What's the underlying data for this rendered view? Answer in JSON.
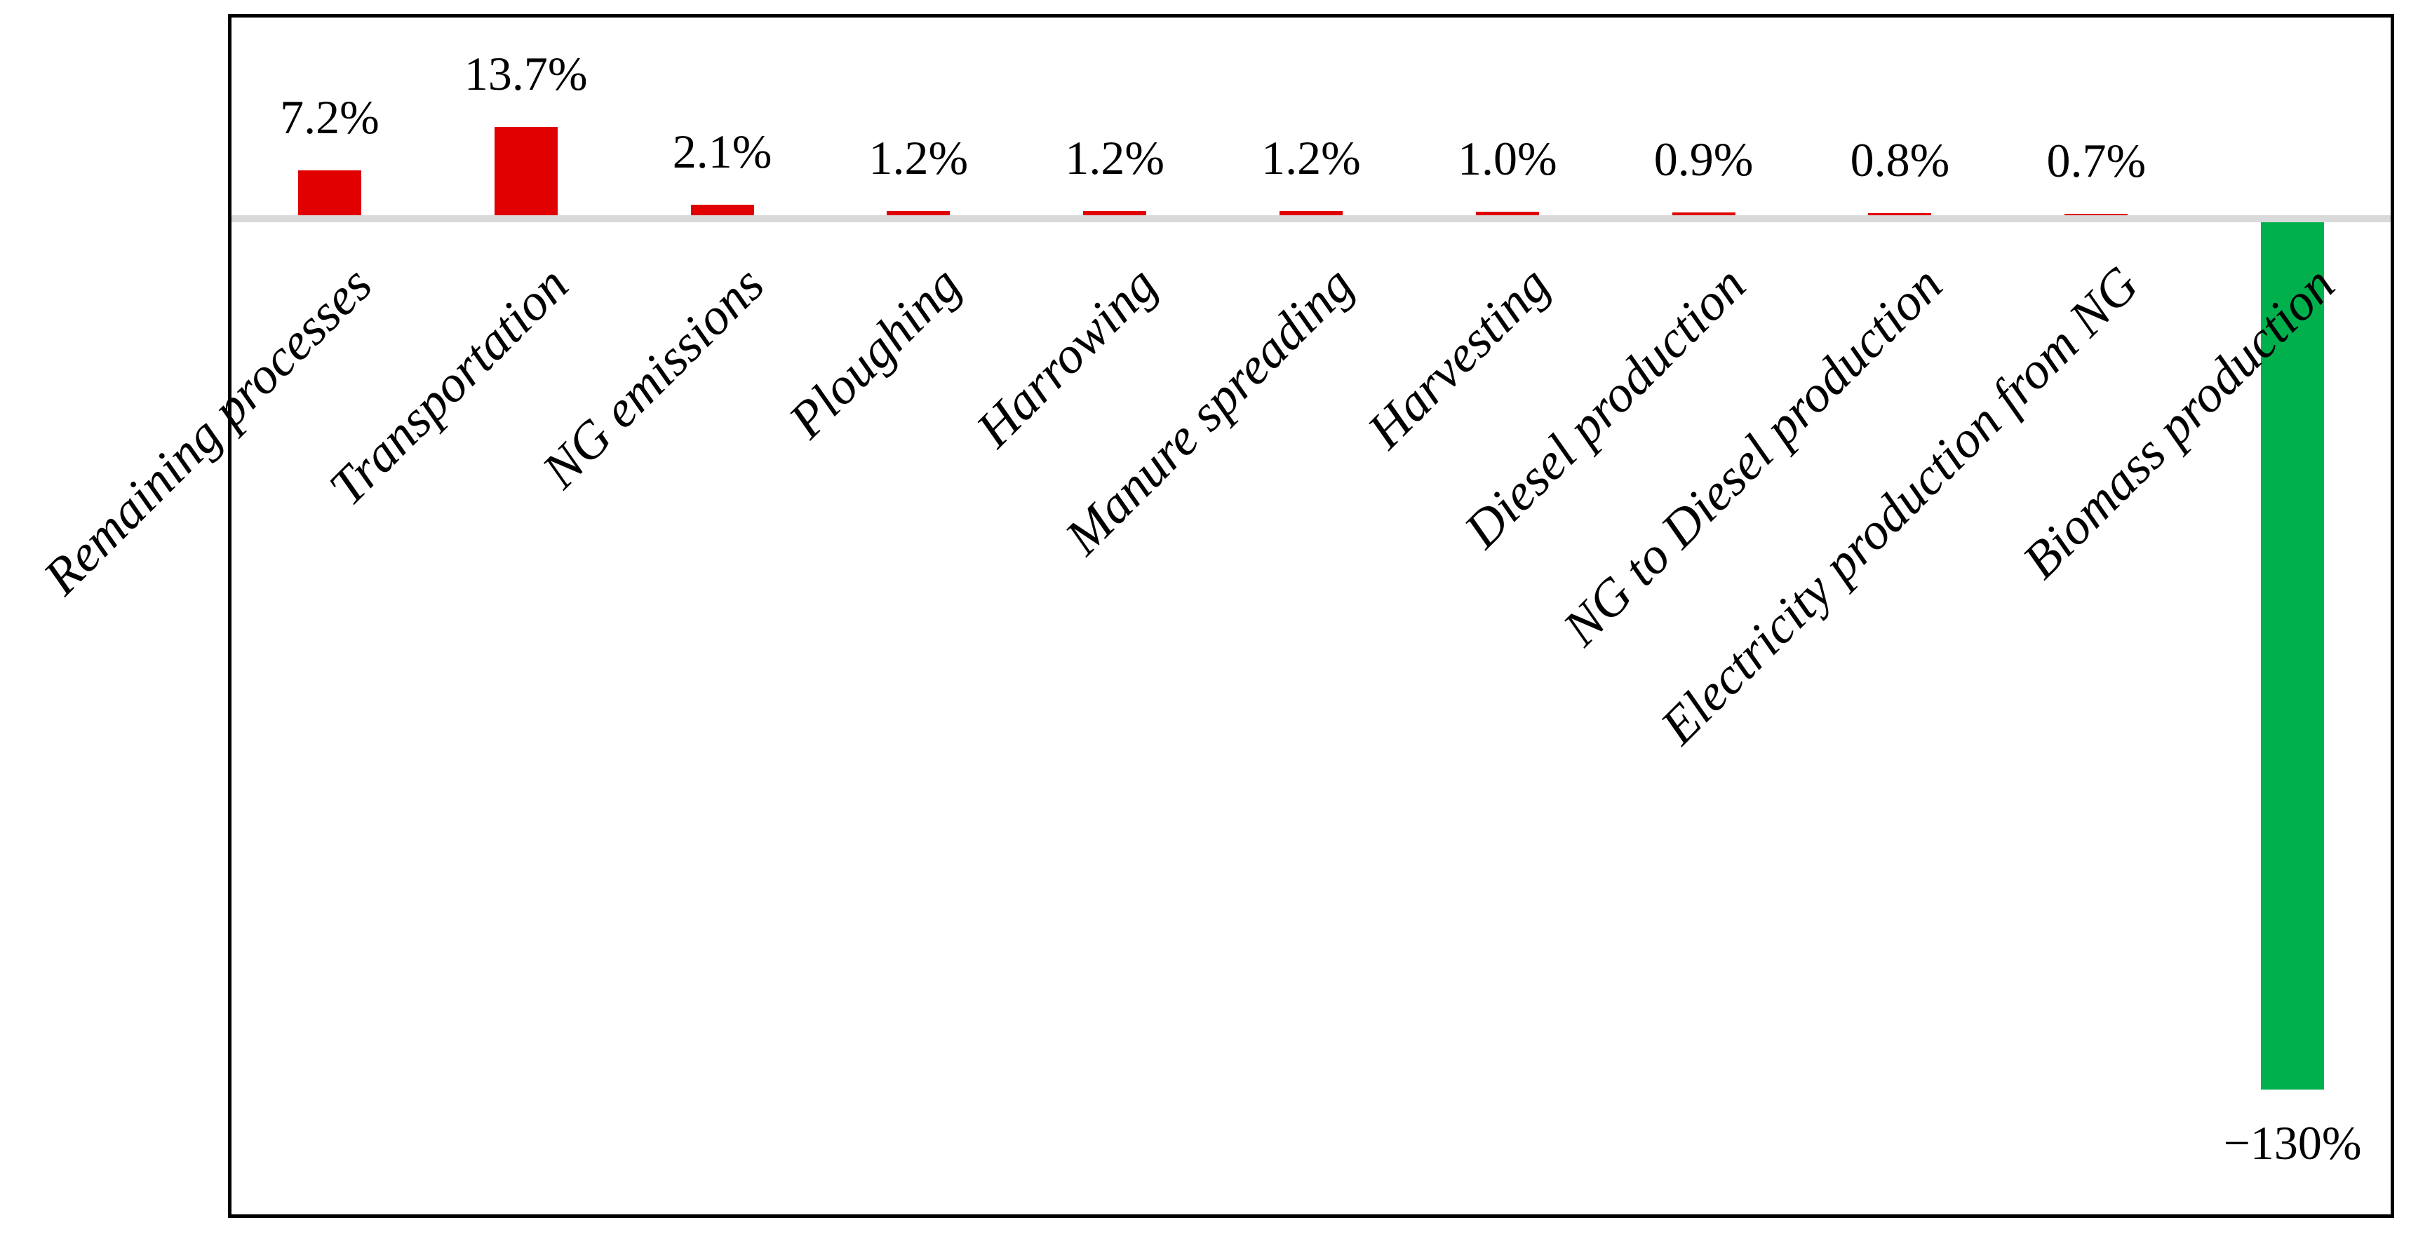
{
  "chart_data": {
    "type": "bar",
    "title": "",
    "xlabel": "",
    "ylabel": "",
    "grid": false,
    "legend_position": "none",
    "orientation": "vertical",
    "zero_line": true,
    "categories": [
      "Remaining processes",
      "Transportation",
      "NG emissions",
      "Ploughing",
      "Harrowing",
      "Manure spreading",
      "Harvesting",
      "Diesel production",
      "NG to Diesel production",
      "Electricity production from NG",
      "Biomass production"
    ],
    "values": [
      7.2,
      13.7,
      2.1,
      1.2,
      1.2,
      1.2,
      1.0,
      0.9,
      0.8,
      0.7,
      -130
    ],
    "data_labels": [
      "7.2%",
      "13.7%",
      "2.1%",
      "1.2%",
      "1.2%",
      "1.2%",
      "1.0%",
      "0.9%",
      "0.8%",
      "0.7%",
      "−130%"
    ],
    "colors": {
      "positive_bar": "#e00000",
      "negative_bar": "#00b04d",
      "zero_line": "#d9d9d9",
      "frame_border": "#000000",
      "label_text": "#000000",
      "background": "#ffffff"
    }
  }
}
